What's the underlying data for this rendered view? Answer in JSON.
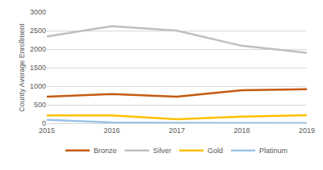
{
  "chart_data": {
    "type": "line",
    "y_label": "County Average Enrollment",
    "categories": [
      "2015",
      "2016",
      "2017",
      "2018",
      "2019"
    ],
    "series": [
      {
        "name": "Bronze",
        "color": "#c55a11",
        "values": [
          720,
          790,
          720,
          890,
          920
        ]
      },
      {
        "name": "Silver",
        "color": "#bfbfbf",
        "values": [
          2340,
          2620,
          2500,
          2090,
          1900
        ]
      },
      {
        "name": "Gold",
        "color": "#ffc000",
        "values": [
          210,
          210,
          110,
          180,
          215
        ]
      },
      {
        "name": "Platinum",
        "color": "#9dc3e6",
        "values": [
          90,
          20,
          10,
          5,
          5
        ]
      }
    ],
    "ylim": [
      0,
      3000
    ],
    "yticks": [
      0,
      500,
      1000,
      1500,
      2000,
      2500,
      3000
    ],
    "grid": true,
    "legend": "bottom"
  }
}
